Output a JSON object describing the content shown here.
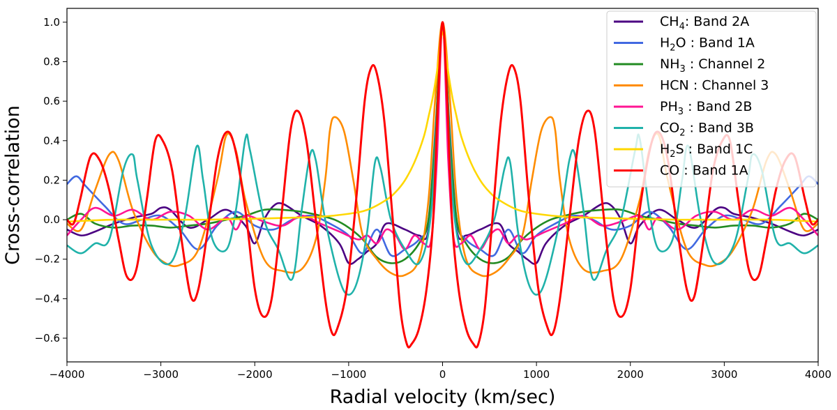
{
  "chart_data": {
    "type": "line",
    "title": "",
    "xlabel": "Radial velocity (km/sec)",
    "ylabel": "Cross-correlation",
    "xlim": [
      -4000,
      4000
    ],
    "ylim": [
      -0.72,
      1.07
    ],
    "xticks": [
      -4000,
      -3000,
      -2000,
      -1000,
      0,
      1000,
      2000,
      3000,
      4000
    ],
    "xtick_labels": [
      "−4000",
      "−3000",
      "−2000",
      "−1000",
      "0",
      "1000",
      "2000",
      "3000",
      "4000"
    ],
    "yticks": [
      -0.6,
      -0.4,
      -0.2,
      0.0,
      0.2,
      0.4,
      0.6,
      0.8,
      1.0
    ],
    "ytick_labels": [
      "−0.6",
      "−0.4",
      "−0.2",
      "0.0",
      "0.2",
      "0.4",
      "0.6",
      "0.8",
      "1.0"
    ],
    "grid": false,
    "legend_position": "top-right",
    "series": [
      {
        "name": "CH₄: Band 2A",
        "legend_main": "CH",
        "legend_sub": "4",
        "legend_rest": ": Band 2A",
        "color": "#4b0082",
        "x": [
          0,
          70,
          150,
          250,
          400,
          600,
          700,
          800,
          900,
          1000,
          1100,
          1300,
          1500,
          1700,
          1800,
          1900,
          2000,
          2100,
          2300,
          2500,
          2700,
          2900,
          3000,
          3100,
          3300,
          3500,
          3700,
          3850,
          4000
        ],
        "y": [
          1.0,
          0.45,
          -0.05,
          -0.08,
          -0.05,
          -0.02,
          -0.12,
          -0.16,
          -0.2,
          -0.22,
          -0.12,
          -0.03,
          0.02,
          0.08,
          0.07,
          0.0,
          -0.12,
          -0.03,
          0.05,
          0.0,
          -0.04,
          0.05,
          0.06,
          0.03,
          0.01,
          -0.02,
          -0.06,
          -0.08,
          -0.05
        ]
      },
      {
        "name": "H₂O : Band 1A",
        "legend_main": "H",
        "legend_sub": "2",
        "legend_rest": "O : Band 1A",
        "color": "#4169e1",
        "x": [
          0,
          70,
          150,
          250,
          400,
          550,
          700,
          850,
          1000,
          1200,
          1400,
          1600,
          1800,
          2000,
          2200,
          2400,
          2600,
          2800,
          3000,
          3200,
          3400,
          3600,
          3800,
          3900,
          4000
        ],
        "y": [
          1.0,
          0.5,
          0.0,
          -0.1,
          -0.15,
          -0.18,
          -0.05,
          -0.17,
          -0.08,
          -0.02,
          0.02,
          0.0,
          -0.05,
          -0.03,
          0.04,
          -0.03,
          -0.15,
          -0.05,
          0.02,
          0.0,
          -0.02,
          0.07,
          0.17,
          0.22,
          0.18
        ]
      },
      {
        "name": "NH₃ : Channel 2",
        "legend_main": "NH",
        "legend_sub": "3",
        "legend_rest": " : Channel 2",
        "color": "#228b22",
        "x": [
          0,
          80,
          150,
          250,
          400,
          550,
          700,
          850,
          1000,
          1150,
          1300,
          1500,
          1700,
          1900,
          2100,
          2300,
          2500,
          2700,
          2900,
          3100,
          3300,
          3500,
          3700,
          3850,
          4000
        ],
        "y": [
          1.0,
          0.4,
          0.0,
          -0.12,
          -0.2,
          -0.22,
          -0.19,
          -0.1,
          -0.04,
          0.0,
          0.02,
          0.04,
          0.05,
          0.05,
          0.02,
          0.0,
          -0.02,
          -0.03,
          -0.04,
          -0.03,
          -0.03,
          -0.04,
          -0.02,
          0.03,
          0.0
        ]
      },
      {
        "name": "HCN : Channel 3",
        "legend_main": "HCN",
        "legend_sub": "",
        "legend_rest": " : Channel 3",
        "color": "#ff8c00",
        "x": [
          0,
          80,
          150,
          250,
          400,
          550,
          700,
          850,
          950,
          1050,
          1150,
          1200,
          1250,
          1350,
          1500,
          1700,
          1900,
          2100,
          2200,
          2300,
          2400,
          2600,
          2800,
          2950,
          3100,
          3300,
          3450,
          3550,
          3700,
          3850,
          4000
        ],
        "y": [
          1.0,
          0.6,
          0.1,
          -0.2,
          -0.28,
          -0.27,
          -0.2,
          -0.08,
          0.2,
          0.45,
          0.52,
          0.45,
          0.2,
          -0.1,
          -0.25,
          -0.26,
          -0.2,
          0.1,
          0.35,
          0.43,
          0.2,
          -0.15,
          -0.23,
          -0.22,
          -0.15,
          0.05,
          0.3,
          0.33,
          0.15,
          -0.05,
          -0.02
        ]
      },
      {
        "name": "PH₃ : Band 2B",
        "legend_main": "PH",
        "legend_sub": "3",
        "legend_rest": " : Band 2B",
        "color": "#ff1493",
        "x": [
          0,
          60,
          120,
          200,
          300,
          400,
          500,
          600,
          700,
          800,
          900,
          1100,
          1300,
          1500,
          1700,
          1900,
          2100,
          2200,
          2300,
          2500,
          2700,
          2900,
          3100,
          3300,
          3500,
          3700,
          3850,
          4000
        ],
        "y": [
          1.0,
          0.3,
          -0.1,
          -0.12,
          -0.08,
          -0.15,
          -0.08,
          -0.05,
          -0.12,
          -0.08,
          -0.1,
          -0.06,
          -0.02,
          0.02,
          -0.03,
          -0.01,
          0.02,
          -0.05,
          0.01,
          -0.05,
          0.02,
          0.04,
          0.0,
          0.05,
          0.02,
          0.06,
          0.0,
          -0.08
        ]
      },
      {
        "name": "CO₂ : Band 3B",
        "legend_main": "CO",
        "legend_sub": "2",
        "legend_rest": " : Band 3B",
        "color": "#20b2aa",
        "x": [
          0,
          60,
          130,
          250,
          400,
          550,
          660,
          720,
          800,
          900,
          1000,
          1100,
          1250,
          1350,
          1410,
          1500,
          1600,
          1750,
          1900,
          2050,
          2100,
          2200,
          2300,
          2450,
          2550,
          2620,
          2750,
          2900,
          3100,
          3250,
          3300,
          3400,
          3550,
          3700,
          3850,
          4000
        ],
        "y": [
          1.0,
          0.5,
          0.0,
          -0.22,
          -0.15,
          0.0,
          0.26,
          0.29,
          -0.05,
          -0.3,
          -0.38,
          -0.3,
          0.0,
          0.3,
          0.33,
          0.05,
          -0.3,
          -0.15,
          0.0,
          0.35,
          0.41,
          0.05,
          -0.15,
          -0.1,
          0.2,
          0.37,
          0.0,
          -0.22,
          -0.13,
          0.2,
          0.33,
          0.25,
          -0.1,
          -0.12,
          -0.17,
          -0.13
        ]
      },
      {
        "name": "H₂S : Band 1C",
        "legend_main": "H",
        "legend_sub": "2",
        "legend_rest": "S : Band 1C",
        "color": "#ffd700",
        "x": [
          0,
          50,
          100,
          150,
          200,
          300,
          400,
          500,
          600,
          800,
          1000,
          1300,
          1600,
          2000,
          2500,
          3000,
          3500,
          4000
        ],
        "y": [
          0.95,
          0.78,
          0.63,
          0.52,
          0.42,
          0.29,
          0.2,
          0.14,
          0.1,
          0.05,
          0.03,
          0.015,
          0.01,
          0.005,
          0.0,
          0.0,
          0.0,
          -0.01
        ]
      },
      {
        "name": "CO : Band 1A",
        "legend_main": "CO",
        "legend_sub": "",
        "legend_rest": " : Band 1A",
        "color": "#ff0000",
        "x": [
          0,
          50,
          100,
          170,
          250,
          330,
          380,
          450,
          530,
          620,
          700,
          760,
          830,
          920,
          1020,
          1120,
          1180,
          1250,
          1350,
          1450,
          1540,
          1620,
          1720,
          1820,
          1910,
          2000,
          2100,
          2220,
          2310,
          2400,
          2500,
          2600,
          2680,
          2780,
          2880,
          2980,
          3060,
          3150,
          3260,
          3360,
          3450,
          3550,
          3650,
          3750,
          3860,
          3930,
          4000
        ],
        "y": [
          1.0,
          0.6,
          0.0,
          -0.35,
          -0.55,
          -0.63,
          -0.63,
          -0.45,
          0.0,
          0.5,
          0.74,
          0.77,
          0.6,
          0.1,
          -0.35,
          -0.55,
          -0.57,
          -0.4,
          0.0,
          0.4,
          0.55,
          0.45,
          0.0,
          -0.4,
          -0.49,
          -0.35,
          0.05,
          0.38,
          0.44,
          0.3,
          -0.05,
          -0.35,
          -0.39,
          -0.1,
          0.25,
          0.4,
          0.4,
          0.1,
          -0.25,
          -0.29,
          -0.1,
          0.15,
          0.3,
          0.32,
          0.1,
          -0.02,
          0.0
        ]
      }
    ]
  }
}
